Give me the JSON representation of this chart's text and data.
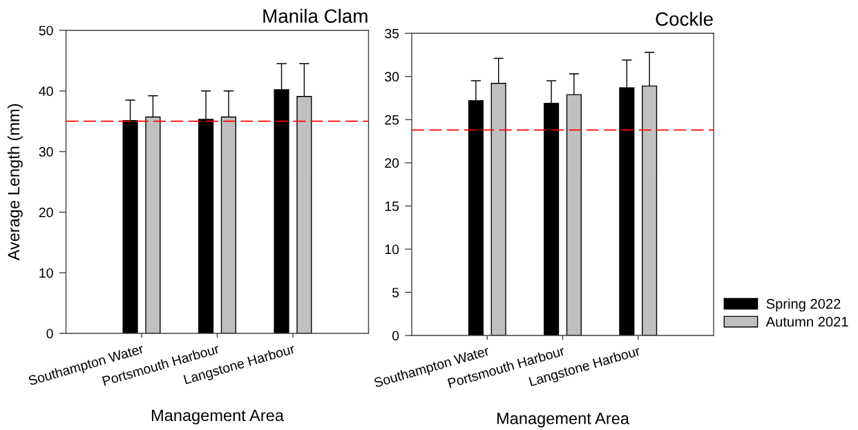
{
  "chart_data": [
    {
      "type": "bar",
      "title": "Manila Clam",
      "xlabel": "Management Area",
      "ylabel": "Average Length (mm)",
      "categories": [
        "Southampton Water",
        "Portsmouth Harbour",
        "Langstone Harbour"
      ],
      "series": [
        {
          "color": "#000000",
          "values": [
            35.1,
            35.3,
            40.2
          ],
          "errors": [
            [
              35.1,
              38.5
            ],
            [
              35.3,
              40.0
            ],
            [
              40.2,
              44.5
            ]
          ]
        },
        {
          "color": "#c0c0c0",
          "values": [
            35.7,
            35.7,
            39.1
          ],
          "errors": [
            [
              35.7,
              39.2
            ],
            [
              35.7,
              40.0
            ],
            [
              39.1,
              44.5
            ]
          ]
        }
      ],
      "ylim": [
        0,
        50
      ],
      "yticks": [
        0,
        10,
        20,
        30,
        40,
        50
      ],
      "ref_lines": [
        {
          "axis": "y",
          "value": 35,
          "color": "#ff0000",
          "line_style": "dashed"
        }
      ]
    },
    {
      "type": "bar",
      "title": "Cockle",
      "xlabel": "Management Area",
      "categories": [
        "Southampton Water",
        "Portsmouth Harbour",
        "Langstone Harbour"
      ],
      "series": [
        {
          "name": "Spring 2022",
          "color": "#000000",
          "values": [
            27.2,
            26.9,
            28.7
          ],
          "errors": [
            [
              27.2,
              29.5
            ],
            [
              26.9,
              29.5
            ],
            [
              28.7,
              31.9
            ]
          ]
        },
        {
          "name": "Autumn 2021",
          "color": "#c0c0c0",
          "values": [
            29.2,
            27.9,
            28.9
          ],
          "errors": [
            [
              29.2,
              32.1
            ],
            [
              27.9,
              30.3
            ],
            [
              28.9,
              32.8
            ]
          ]
        }
      ],
      "ylim": [
        0,
        35
      ],
      "yticks": [
        0,
        5,
        10,
        15,
        20,
        25,
        30,
        35
      ],
      "ref_lines": [
        {
          "axis": "y",
          "value": 23.8,
          "color": "#ff0000",
          "line_style": "dashed"
        }
      ],
      "legend": "bottom right"
    }
  ]
}
